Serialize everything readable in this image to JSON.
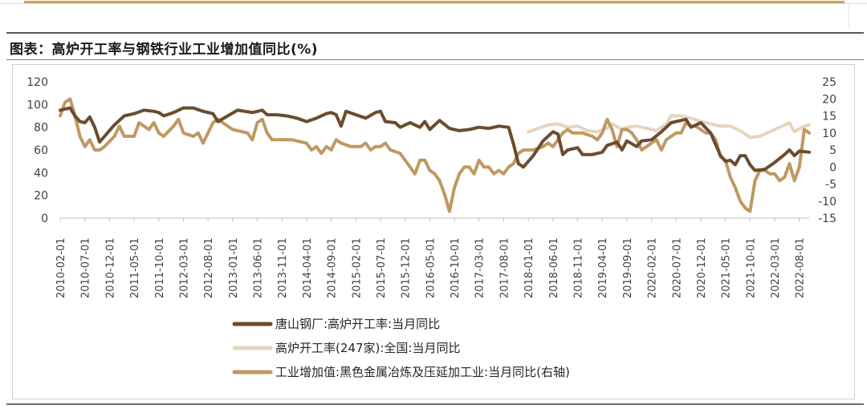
{
  "title": "图表：高炉开工率与钢铁行业工业增加值同比(%)",
  "chart_data": {
    "type": "line",
    "title": "图表：高炉开工率与钢铁行业工业增加值同比(%)",
    "ylim_left": [
      0,
      120
    ],
    "yticks_left": [
      "0",
      "20",
      "40",
      "60",
      "80",
      "100",
      "120"
    ],
    "ylim_right": [
      -15,
      25
    ],
    "yticks_right": [
      "-15",
      "-10",
      "-5",
      "0",
      "5",
      "10",
      "15",
      "20",
      "25"
    ],
    "x_start": "2010-02",
    "x_end": "2022-10",
    "xtick_labels": [
      "2010-02-01",
      "2010-07-01",
      "2010-12-01",
      "2011-05-01",
      "2011-10-01",
      "2012-03-01",
      "2012-08-01",
      "2013-01-01",
      "2013-06-01",
      "2013-11-01",
      "2014-04-01",
      "2014-09-01",
      "2015-02-01",
      "2015-07-01",
      "2015-12-01",
      "2016-05-01",
      "2016-10-01",
      "2017-03-01",
      "2017-08-01",
      "2018-01-01",
      "2018-06-01",
      "2018-11-01",
      "2019-04-01",
      "2019-09-01",
      "2020-02-01",
      "2020-07-01",
      "2020-12-01",
      "2021-05-01",
      "2021-10-01",
      "2022-03-01",
      "2022-08-01"
    ],
    "series": [
      {
        "name": "唐山钢厂:高炉开工率:当月同比",
        "axis": "left",
        "color": "#6b4c2e",
        "width": 4,
        "points": [
          [
            "2010-02",
            95
          ],
          [
            "2010-04",
            97
          ],
          [
            "2010-05",
            90
          ],
          [
            "2010-06",
            85
          ],
          [
            "2010-07",
            84
          ],
          [
            "2010-08",
            89
          ],
          [
            "2010-09",
            80
          ],
          [
            "2010-10",
            67
          ],
          [
            "2010-11",
            72
          ],
          [
            "2011-01",
            82
          ],
          [
            "2011-03",
            90
          ],
          [
            "2011-05",
            92
          ],
          [
            "2011-07",
            95
          ],
          [
            "2011-09",
            94
          ],
          [
            "2011-10",
            93
          ],
          [
            "2011-11",
            90
          ],
          [
            "2012-01",
            93
          ],
          [
            "2012-03",
            97
          ],
          [
            "2012-05",
            97
          ],
          [
            "2012-07",
            94
          ],
          [
            "2012-09",
            92
          ],
          [
            "2012-10",
            85
          ],
          [
            "2012-12",
            90
          ],
          [
            "2013-02",
            95
          ],
          [
            "2013-05",
            93
          ],
          [
            "2013-07",
            95
          ],
          [
            "2013-08",
            91
          ],
          [
            "2013-10",
            91
          ],
          [
            "2013-12",
            90
          ],
          [
            "2014-02",
            88
          ],
          [
            "2014-04",
            85
          ],
          [
            "2014-06",
            88
          ],
          [
            "2014-08",
            92
          ],
          [
            "2014-09",
            93
          ],
          [
            "2014-10",
            91
          ],
          [
            "2014-11",
            81
          ],
          [
            "2014-12",
            94
          ],
          [
            "2015-02",
            91
          ],
          [
            "2015-04",
            88
          ],
          [
            "2015-06",
            93
          ],
          [
            "2015-07",
            94
          ],
          [
            "2015-08",
            85
          ],
          [
            "2015-10",
            84
          ],
          [
            "2015-11",
            80
          ],
          [
            "2016-01",
            84
          ],
          [
            "2016-03",
            80
          ],
          [
            "2016-04",
            85
          ],
          [
            "2016-05",
            78
          ],
          [
            "2016-07",
            86
          ],
          [
            "2016-09",
            79
          ],
          [
            "2016-11",
            77
          ],
          [
            "2017-01",
            78
          ],
          [
            "2017-03",
            80
          ],
          [
            "2017-05",
            79
          ],
          [
            "2017-07",
            81
          ],
          [
            "2017-09",
            80
          ],
          [
            "2017-10",
            65
          ],
          [
            "2017-11",
            48
          ],
          [
            "2017-12",
            45
          ],
          [
            "2018-02",
            55
          ],
          [
            "2018-04",
            68
          ],
          [
            "2018-06",
            76
          ],
          [
            "2018-07",
            74
          ],
          [
            "2018-08",
            56
          ],
          [
            "2018-09",
            60
          ],
          [
            "2018-11",
            62
          ],
          [
            "2018-12",
            56
          ],
          [
            "2019-02",
            56
          ],
          [
            "2019-04",
            58
          ],
          [
            "2019-05",
            64
          ],
          [
            "2019-07",
            67
          ],
          [
            "2019-08",
            60
          ],
          [
            "2019-09",
            68
          ],
          [
            "2019-11",
            63
          ],
          [
            "2019-12",
            68
          ],
          [
            "2020-02",
            69
          ],
          [
            "2020-04",
            76
          ],
          [
            "2020-06",
            84
          ],
          [
            "2020-07",
            85
          ],
          [
            "2020-09",
            87
          ],
          [
            "2020-10",
            80
          ],
          [
            "2020-12",
            84
          ],
          [
            "2021-02",
            75
          ],
          [
            "2021-04",
            55
          ],
          [
            "2021-05",
            50
          ],
          [
            "2021-06",
            51
          ],
          [
            "2021-07",
            47
          ],
          [
            "2021-08",
            55
          ],
          [
            "2021-09",
            55
          ],
          [
            "2021-10",
            47
          ],
          [
            "2021-11",
            42
          ],
          [
            "2022-01",
            43
          ],
          [
            "2022-03",
            49
          ],
          [
            "2022-05",
            56
          ],
          [
            "2022-06",
            60
          ],
          [
            "2022-07",
            55
          ],
          [
            "2022-08",
            59
          ],
          [
            "2022-10",
            58
          ]
        ]
      },
      {
        "name": "高炉开工率(247家):全国:当月同比",
        "axis": "left",
        "color": "#e6d5be",
        "width": 4,
        "points": [
          [
            "2018-01",
            76
          ],
          [
            "2018-03",
            79
          ],
          [
            "2018-05",
            82
          ],
          [
            "2018-07",
            83
          ],
          [
            "2018-09",
            80
          ],
          [
            "2018-11",
            81
          ],
          [
            "2019-01",
            77
          ],
          [
            "2019-03",
            76
          ],
          [
            "2019-05",
            79
          ],
          [
            "2019-06",
            83
          ],
          [
            "2019-08",
            78
          ],
          [
            "2019-09",
            80
          ],
          [
            "2019-11",
            81
          ],
          [
            "2020-01",
            79
          ],
          [
            "2020-03",
            77
          ],
          [
            "2020-05",
            83
          ],
          [
            "2020-06",
            90
          ],
          [
            "2020-08",
            90
          ],
          [
            "2020-10",
            88
          ],
          [
            "2020-12",
            85
          ],
          [
            "2021-02",
            83
          ],
          [
            "2021-04",
            81
          ],
          [
            "2021-06",
            81
          ],
          [
            "2021-08",
            77
          ],
          [
            "2021-10",
            71
          ],
          [
            "2021-12",
            72
          ],
          [
            "2022-02",
            76
          ],
          [
            "2022-04",
            80
          ],
          [
            "2022-06",
            84
          ],
          [
            "2022-07",
            76
          ],
          [
            "2022-09",
            81
          ],
          [
            "2022-10",
            82
          ]
        ]
      },
      {
        "name": "工业增加值:黑色金属冶炼及压延加工业:当月同比(右轴)",
        "axis": "right",
        "color": "#bf9962",
        "width": 4,
        "points": [
          [
            "2010-02",
            15
          ],
          [
            "2010-03",
            19
          ],
          [
            "2010-04",
            20
          ],
          [
            "2010-05",
            15
          ],
          [
            "2010-06",
            9
          ],
          [
            "2010-07",
            6
          ],
          [
            "2010-08",
            8
          ],
          [
            "2010-09",
            5
          ],
          [
            "2010-10",
            5
          ],
          [
            "2010-11",
            6
          ],
          [
            "2011-01",
            9
          ],
          [
            "2011-02",
            12
          ],
          [
            "2011-03",
            9
          ],
          [
            "2011-04",
            9
          ],
          [
            "2011-05",
            9
          ],
          [
            "2011-06",
            13
          ],
          [
            "2011-08",
            11
          ],
          [
            "2011-09",
            13
          ],
          [
            "2011-10",
            10
          ],
          [
            "2011-11",
            9
          ],
          [
            "2012-01",
            12
          ],
          [
            "2012-02",
            14
          ],
          [
            "2012-03",
            10
          ],
          [
            "2012-05",
            9
          ],
          [
            "2012-06",
            10
          ],
          [
            "2012-07",
            7
          ],
          [
            "2012-08",
            10
          ],
          [
            "2012-09",
            13
          ],
          [
            "2012-10",
            14
          ],
          [
            "2013-01",
            11
          ],
          [
            "2013-04",
            10
          ],
          [
            "2013-05",
            8
          ],
          [
            "2013-06",
            13
          ],
          [
            "2013-07",
            14
          ],
          [
            "2013-08",
            10
          ],
          [
            "2013-09",
            8
          ],
          [
            "2014-01",
            8
          ],
          [
            "2014-04",
            7
          ],
          [
            "2014-05",
            5
          ],
          [
            "2014-06",
            6
          ],
          [
            "2014-07",
            4
          ],
          [
            "2014-08",
            6
          ],
          [
            "2014-09",
            5
          ],
          [
            "2014-10",
            8
          ],
          [
            "2014-11",
            7
          ],
          [
            "2015-01",
            6
          ],
          [
            "2015-02",
            6
          ],
          [
            "2015-03",
            6
          ],
          [
            "2015-04",
            7
          ],
          [
            "2015-05",
            5
          ],
          [
            "2015-06",
            6
          ],
          [
            "2015-07",
            6
          ],
          [
            "2015-08",
            7
          ],
          [
            "2015-09",
            5
          ],
          [
            "2015-11",
            4
          ],
          [
            "2015-12",
            2
          ],
          [
            "2016-01",
            0
          ],
          [
            "2016-02",
            -2
          ],
          [
            "2016-03",
            2
          ],
          [
            "2016-04",
            2
          ],
          [
            "2016-05",
            -1
          ],
          [
            "2016-06",
            -2
          ],
          [
            "2016-07",
            -4
          ],
          [
            "2016-08",
            -8
          ],
          [
            "2016-09",
            -13
          ],
          [
            "2016-10",
            -6
          ],
          [
            "2016-11",
            -2
          ],
          [
            "2016-12",
            0
          ],
          [
            "2017-01",
            0
          ],
          [
            "2017-02",
            -2
          ],
          [
            "2017-03",
            2
          ],
          [
            "2017-04",
            0
          ],
          [
            "2017-05",
            0
          ],
          [
            "2017-06",
            -2
          ],
          [
            "2017-07",
            -1
          ],
          [
            "2017-08",
            -2
          ],
          [
            "2017-09",
            0
          ],
          [
            "2017-10",
            1
          ],
          [
            "2017-11",
            4
          ],
          [
            "2017-12",
            5
          ],
          [
            "2018-02",
            5
          ],
          [
            "2018-04",
            6
          ],
          [
            "2018-05",
            7
          ],
          [
            "2018-06",
            6
          ],
          [
            "2018-07",
            8
          ],
          [
            "2018-08",
            10
          ],
          [
            "2018-09",
            11
          ],
          [
            "2018-10",
            10
          ],
          [
            "2018-12",
            10
          ],
          [
            "2019-02",
            9
          ],
          [
            "2019-03",
            8
          ],
          [
            "2019-04",
            10
          ],
          [
            "2019-05",
            14
          ],
          [
            "2019-06",
            11
          ],
          [
            "2019-07",
            6
          ],
          [
            "2019-08",
            11
          ],
          [
            "2019-09",
            11
          ],
          [
            "2019-10",
            10
          ],
          [
            "2019-11",
            8
          ],
          [
            "2019-12",
            5
          ],
          [
            "2020-01",
            6
          ],
          [
            "2020-02",
            7
          ],
          [
            "2020-03",
            8
          ],
          [
            "2020-04",
            5
          ],
          [
            "2020-05",
            8
          ],
          [
            "2020-06",
            9
          ],
          [
            "2020-07",
            10
          ],
          [
            "2020-08",
            10
          ],
          [
            "2020-09",
            13
          ],
          [
            "2020-10",
            12
          ],
          [
            "2020-11",
            12
          ],
          [
            "2020-12",
            11
          ],
          [
            "2021-01",
            10
          ],
          [
            "2021-02",
            10
          ],
          [
            "2021-03",
            8
          ],
          [
            "2021-04",
            3
          ],
          [
            "2021-05",
            2
          ],
          [
            "2021-06",
            -3
          ],
          [
            "2021-07",
            -6
          ],
          [
            "2021-08",
            -10
          ],
          [
            "2021-09",
            -12
          ],
          [
            "2021-10",
            -13
          ],
          [
            "2021-11",
            -4
          ],
          [
            "2021-12",
            -1
          ],
          [
            "2022-01",
            -1
          ],
          [
            "2022-02",
            -2
          ],
          [
            "2022-03",
            -2
          ],
          [
            "2022-04",
            -4
          ],
          [
            "2022-05",
            -3
          ],
          [
            "2022-06",
            1
          ],
          [
            "2022-07",
            -4
          ],
          [
            "2022-08",
            0
          ],
          [
            "2022-09",
            11
          ],
          [
            "2022-10",
            10
          ]
        ]
      }
    ],
    "legend": {
      "position": "bottom-center",
      "entries": [
        "唐山钢厂:高炉开工率:当月同比",
        "高炉开工率(247家):全国:当月同比",
        "工业增加值:黑色金属冶炼及压延加工业:当月同比(右轴)"
      ]
    }
  }
}
